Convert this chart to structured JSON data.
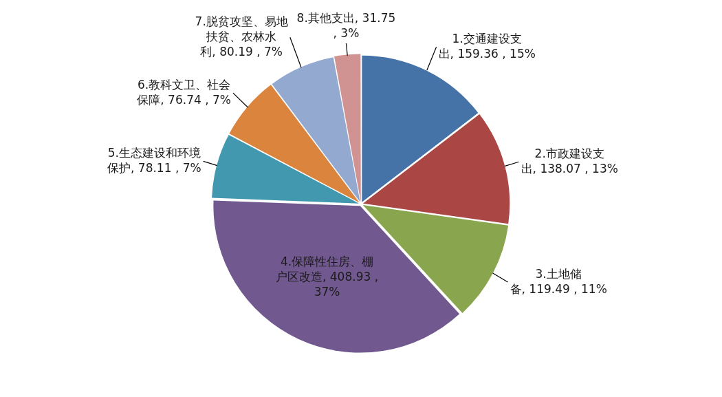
{
  "chart_data": {
    "type": "pie",
    "categories": [
      "1.交通建设支出",
      "2.市政建设支出",
      "3.土地储备",
      "4.保障性住房、棚户区改造",
      "5.生态建设和环境保护",
      "6.教科文卫、社会保障",
      "7.脱贫攻坚、易地扶贫、农林水利",
      "8.其他支出"
    ],
    "values": [
      159.36,
      138.07,
      119.49,
      408.93,
      78.11,
      76.74,
      80.19,
      31.75
    ],
    "colors": [
      "#4572a7",
      "#aa4643",
      "#89a54e",
      "#71588f",
      "#4198af",
      "#db843d",
      "#93a9cf",
      "#d19392"
    ],
    "value_labels": [
      "159.36 , 15%",
      "138.07 , 13%",
      "119.49 , 11%",
      "408.93 , 37%",
      "78.11 , 7%",
      "76.74 , 7%",
      "80.19 , 7%",
      "31.75 , 3%"
    ]
  }
}
